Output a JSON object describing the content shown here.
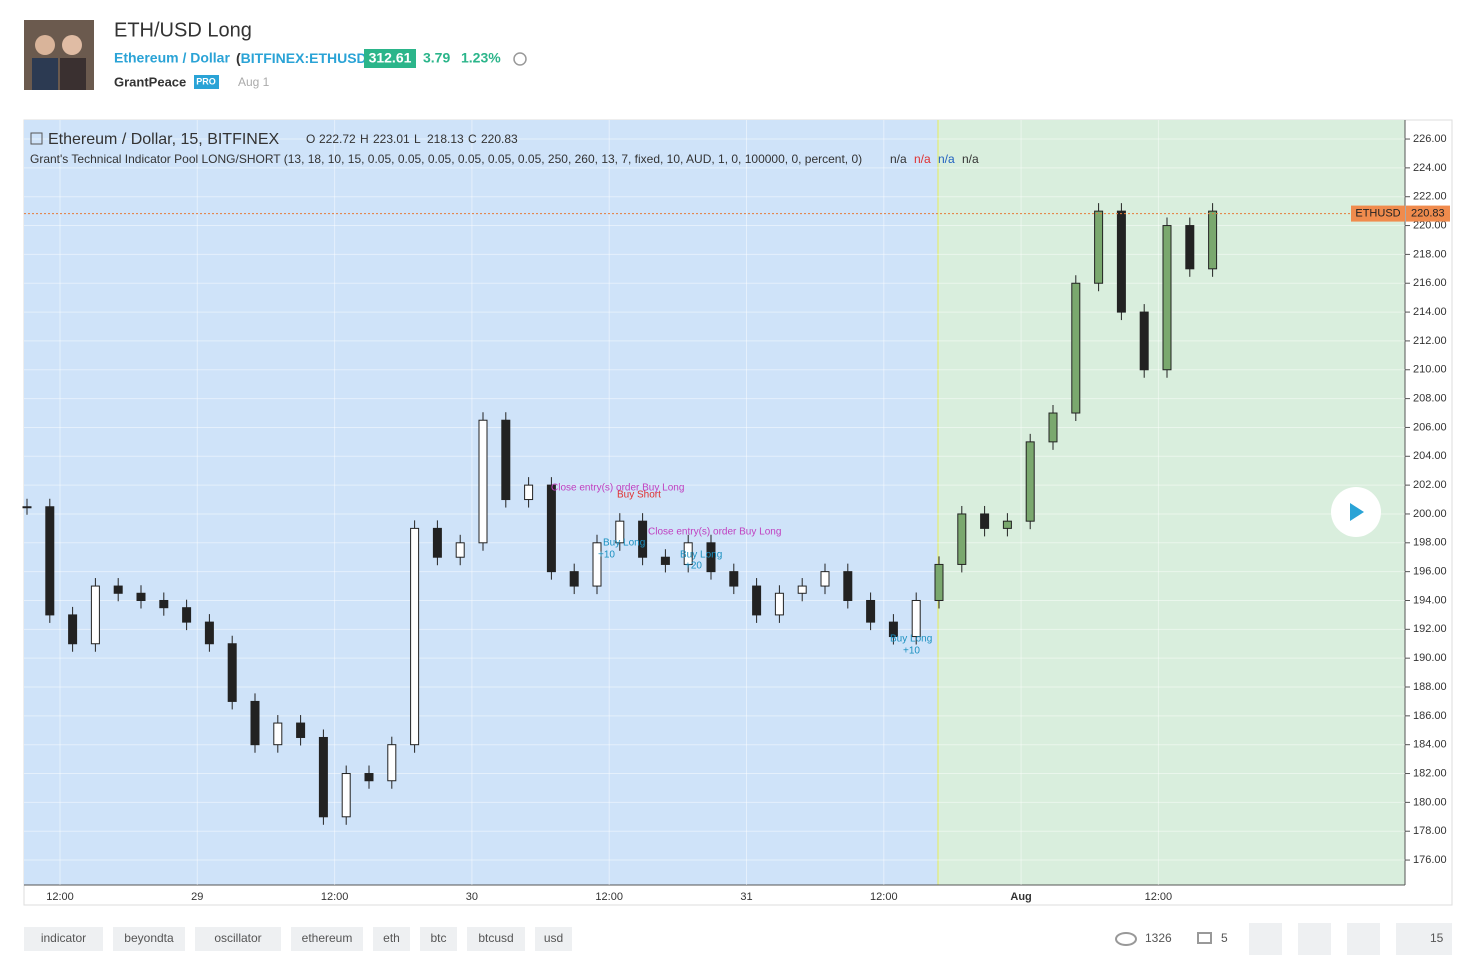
{
  "header": {
    "title": "ETH/USD Long",
    "symbol_name": "Ethereum / Dollar",
    "exchange": "BITFINEX:ETHUSD",
    "price": 312.61,
    "change": 3.79,
    "change_pct": "1.23%",
    "author": "GrantPeace",
    "badge": "PRO",
    "date": "Aug 1"
  },
  "chart": {
    "legend_title": "Ethereum / Dollar, 15, BITFINEX",
    "ohlc": [
      {
        "label": "O",
        "value": 222.72
      },
      {
        "label": "H",
        "value": 223.01
      },
      {
        "label": "L",
        "value": 218.13
      },
      {
        "label": "C",
        "value": 220.83
      }
    ],
    "indicator": "Grant's Technical Indicator Pool LONG/SHORT (13, 18, 10, 15, 0.05, 0.05, 0.05, 0.05, 0.05, 0.05, 250, 260, 13, 7, fixed, 10, AUD, 1, 0, 100000, 0, percent, 0)",
    "na": [
      "n/a",
      "n/a",
      "n/a",
      "n/a"
    ],
    "symbol_tag": "ETHUSD",
    "last": 220.83,
    "ylim": [
      174.27,
      227.32
    ],
    "yticks": [
      {
        "value": 176,
        "label": "176.00"
      },
      {
        "value": 178,
        "label": "178.00"
      },
      {
        "value": 180,
        "label": "180.00"
      },
      {
        "value": 182,
        "label": "182.00"
      },
      {
        "value": 184,
        "label": "184.00"
      },
      {
        "value": 186,
        "label": "186.00"
      },
      {
        "value": 188,
        "label": "188.00"
      },
      {
        "value": 190,
        "label": "190.00"
      },
      {
        "value": 192,
        "label": "192.00"
      },
      {
        "value": 194,
        "label": "194.00"
      },
      {
        "value": 196,
        "label": "196.00"
      },
      {
        "value": 198,
        "label": "198.00"
      },
      {
        "value": 200,
        "label": "200.00"
      },
      {
        "value": 202,
        "label": "202.00"
      },
      {
        "value": 204,
        "label": "204.00"
      },
      {
        "value": 206,
        "label": "206.00"
      },
      {
        "value": 208,
        "label": "208.00"
      },
      {
        "value": 210,
        "label": "210.00"
      },
      {
        "value": 212,
        "label": "212.00"
      },
      {
        "value": 214,
        "label": "214.00"
      },
      {
        "value": 216,
        "label": "216.00"
      },
      {
        "value": 218,
        "label": "218.00"
      },
      {
        "value": 220,
        "label": "220.00"
      },
      {
        "value": 222,
        "label": "222.00"
      },
      {
        "value": 224,
        "label": "224.00"
      },
      {
        "value": 226,
        "label": "226.00"
      }
    ],
    "xticks": [
      "12:00",
      "29",
      "12:00",
      "30",
      "12:00",
      "31",
      "12:00",
      "Aug",
      "12:00"
    ],
    "closes": [
      200.5,
      193,
      191,
      195,
      194.5,
      194,
      193.5,
      192.5,
      191,
      187,
      184,
      185.5,
      184.5,
      179,
      182,
      181.5,
      184,
      199,
      197,
      198,
      206.5,
      201,
      202,
      196,
      195,
      198,
      199.5,
      197,
      196.5,
      198,
      196,
      195,
      193,
      194.5,
      195,
      196,
      194,
      192.5,
      191.5,
      194,
      196.5,
      200,
      199,
      199.5,
      205,
      207,
      216,
      221,
      214,
      210,
      220,
      217,
      221
    ],
    "annotations": [
      "Close entry(s) order Buy Long",
      "Buy Short",
      "Buy Long",
      "+10",
      "Close entry(s) order Buy Long",
      "Buy Long",
      "+20",
      "Buy Long",
      "+10"
    ]
  },
  "tags": [
    "indicator",
    "beyondta",
    "oscillator",
    "ethereum",
    "eth",
    "btc",
    "btcusd",
    "usd"
  ],
  "stats": {
    "views": 1326,
    "comments": 5,
    "likes": 15
  }
}
